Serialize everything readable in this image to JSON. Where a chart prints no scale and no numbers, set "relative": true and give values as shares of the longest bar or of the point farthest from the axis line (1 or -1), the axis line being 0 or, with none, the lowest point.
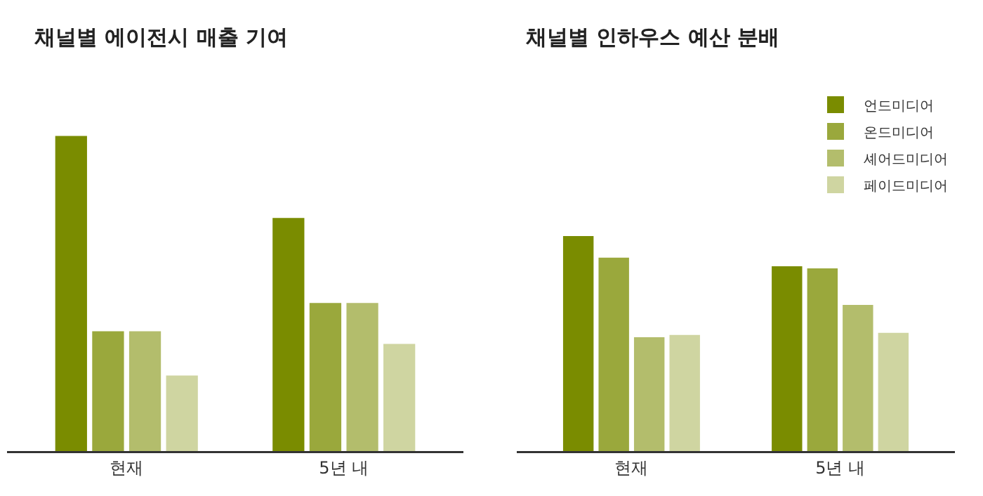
{
  "chart_data": [
    {
      "type": "bar",
      "title": "채널별 에이전시 매출 기여",
      "relative": true,
      "categories": [
        "현재",
        "5년 내"
      ],
      "grid": false,
      "legend": false,
      "series": [
        {
          "color": "#7a8c00",
          "values": [
            1,
            0.74
          ]
        },
        {
          "color": "#9aa83c",
          "values": [
            0.38,
            0.47
          ]
        },
        {
          "color": "#b3bd6c",
          "values": [
            0.38,
            0.47
          ]
        },
        {
          "color": "#cfd5a1",
          "values": [
            0.24,
            0.34
          ]
        }
      ]
    },
    {
      "type": "bar",
      "title": "채널별 인하우스 예산 분배",
      "relative": true,
      "categories": [
        "현재",
        "5년 내"
      ],
      "grid": false,
      "legend": "top right",
      "series": [
        {
          "name": "언드미디어",
          "color": "#7a8c00",
          "values": [
            1,
            0.86
          ]
        },
        {
          "name": "온드미디어",
          "color": "#9aa83c",
          "values": [
            0.9,
            0.85
          ]
        },
        {
          "name": "셰어드미디어",
          "color": "#b3bd6c",
          "values": [
            0.53,
            0.68
          ]
        },
        {
          "name": "페이드미디어",
          "color": "#cfd5a1",
          "values": [
            0.54,
            0.55
          ]
        }
      ]
    }
  ]
}
